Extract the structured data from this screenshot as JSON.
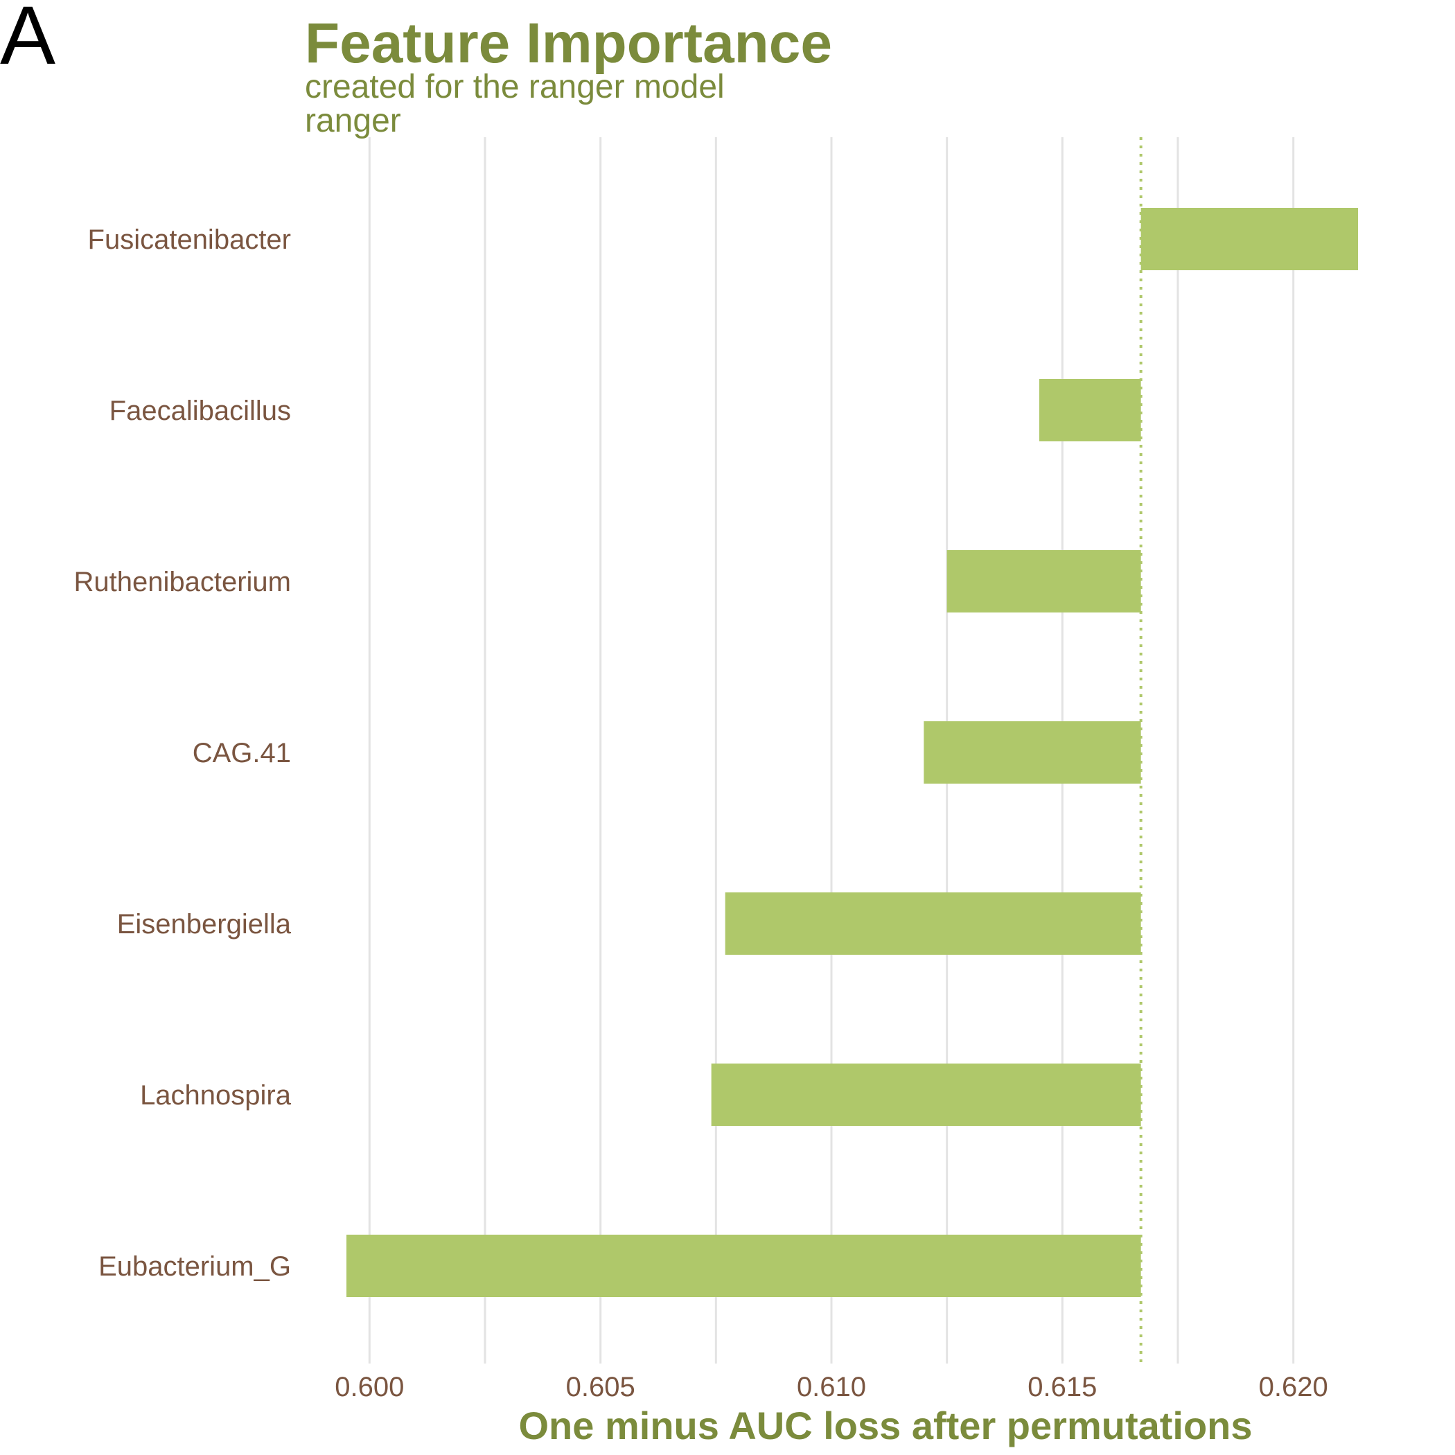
{
  "panel_label": "A",
  "colors": {
    "bar": "#AFC86A",
    "baseline": "#AFC86A",
    "title": "#7B8B3C",
    "tick_text": "#7A5540",
    "grid": "#E3E3E3"
  },
  "chart_data": {
    "type": "bar",
    "orientation": "horizontal",
    "title": "Feature Importance",
    "subtitle": "created for the ranger model",
    "model_label": "ranger",
    "xlabel": "One minus AUC loss after permutations",
    "ylabel": "",
    "xlim": [
      0.5986,
      0.6226
    ],
    "x_ticks": [
      0.6,
      0.605,
      0.61,
      0.615,
      0.62
    ],
    "x_tick_labels": [
      "0.600",
      "0.605",
      "0.610",
      "0.615",
      "0.620"
    ],
    "baseline": 0.6167,
    "grid": true,
    "legend": "none",
    "categories": [
      "Fusicatenibacter",
      "Faecalibacillus",
      "Ruthenibacterium",
      "CAG.41",
      "Eisenbergiella",
      "Lachnospira",
      "Eubacterium_G"
    ],
    "values": [
      0.6214,
      0.6145,
      0.6125,
      0.612,
      0.6077,
      0.6074,
      0.5995
    ]
  }
}
